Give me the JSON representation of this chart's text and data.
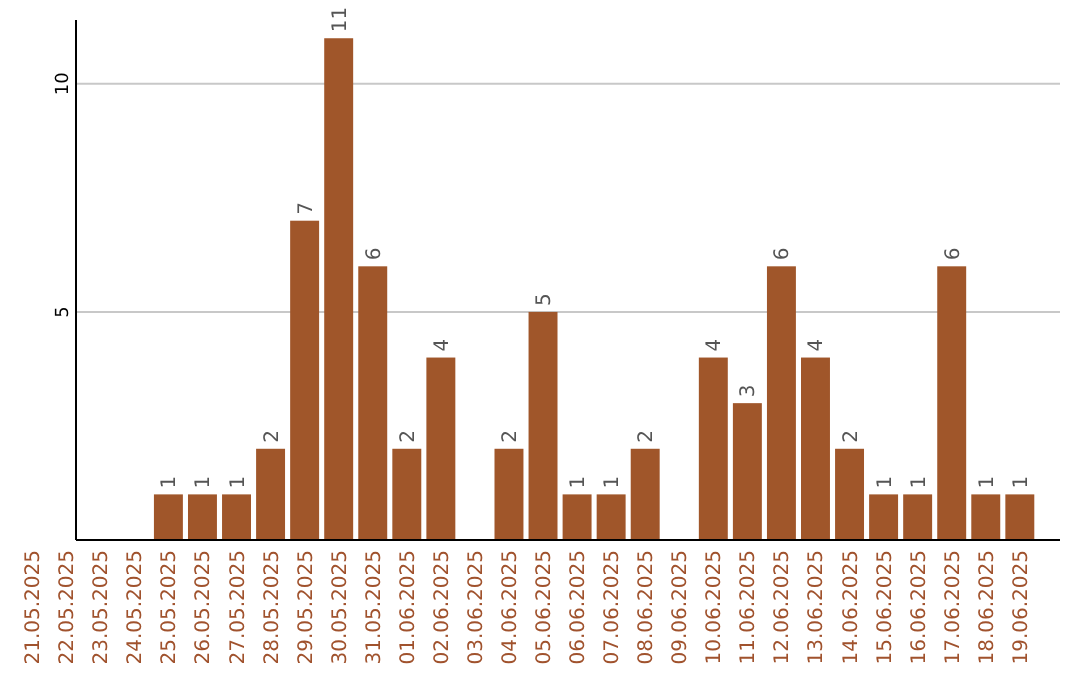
{
  "chart_data": {
    "type": "bar",
    "categories": [
      "21.05.2025",
      "22.05.2025",
      "23.05.2025",
      "24.05.2025",
      "25.05.2025",
      "26.05.2025",
      "27.05.2025",
      "28.05.2025",
      "29.05.2025",
      "30.05.2025",
      "31.05.2025",
      "01.06.2025",
      "02.06.2025",
      "03.06.2025",
      "04.06.2025",
      "05.06.2025",
      "06.06.2025",
      "07.06.2025",
      "08.06.2025",
      "09.06.2025",
      "10.06.2025",
      "11.06.2025",
      "12.06.2025",
      "13.06.2025",
      "14.06.2025",
      "15.06.2025",
      "16.06.2025",
      "17.06.2025",
      "18.06.2025",
      "19.06.2025"
    ],
    "values": [
      null,
      null,
      null,
      null,
      1,
      1,
      1,
      2,
      7,
      11,
      6,
      2,
      4,
      null,
      2,
      5,
      1,
      1,
      2,
      null,
      4,
      3,
      6,
      4,
      2,
      1,
      1,
      6,
      1,
      1
    ],
    "color": "#a0562a",
    "ylim": [
      0,
      11.4
    ],
    "yticks": [
      5,
      10
    ],
    "grid": "y",
    "data_labels": true
  }
}
